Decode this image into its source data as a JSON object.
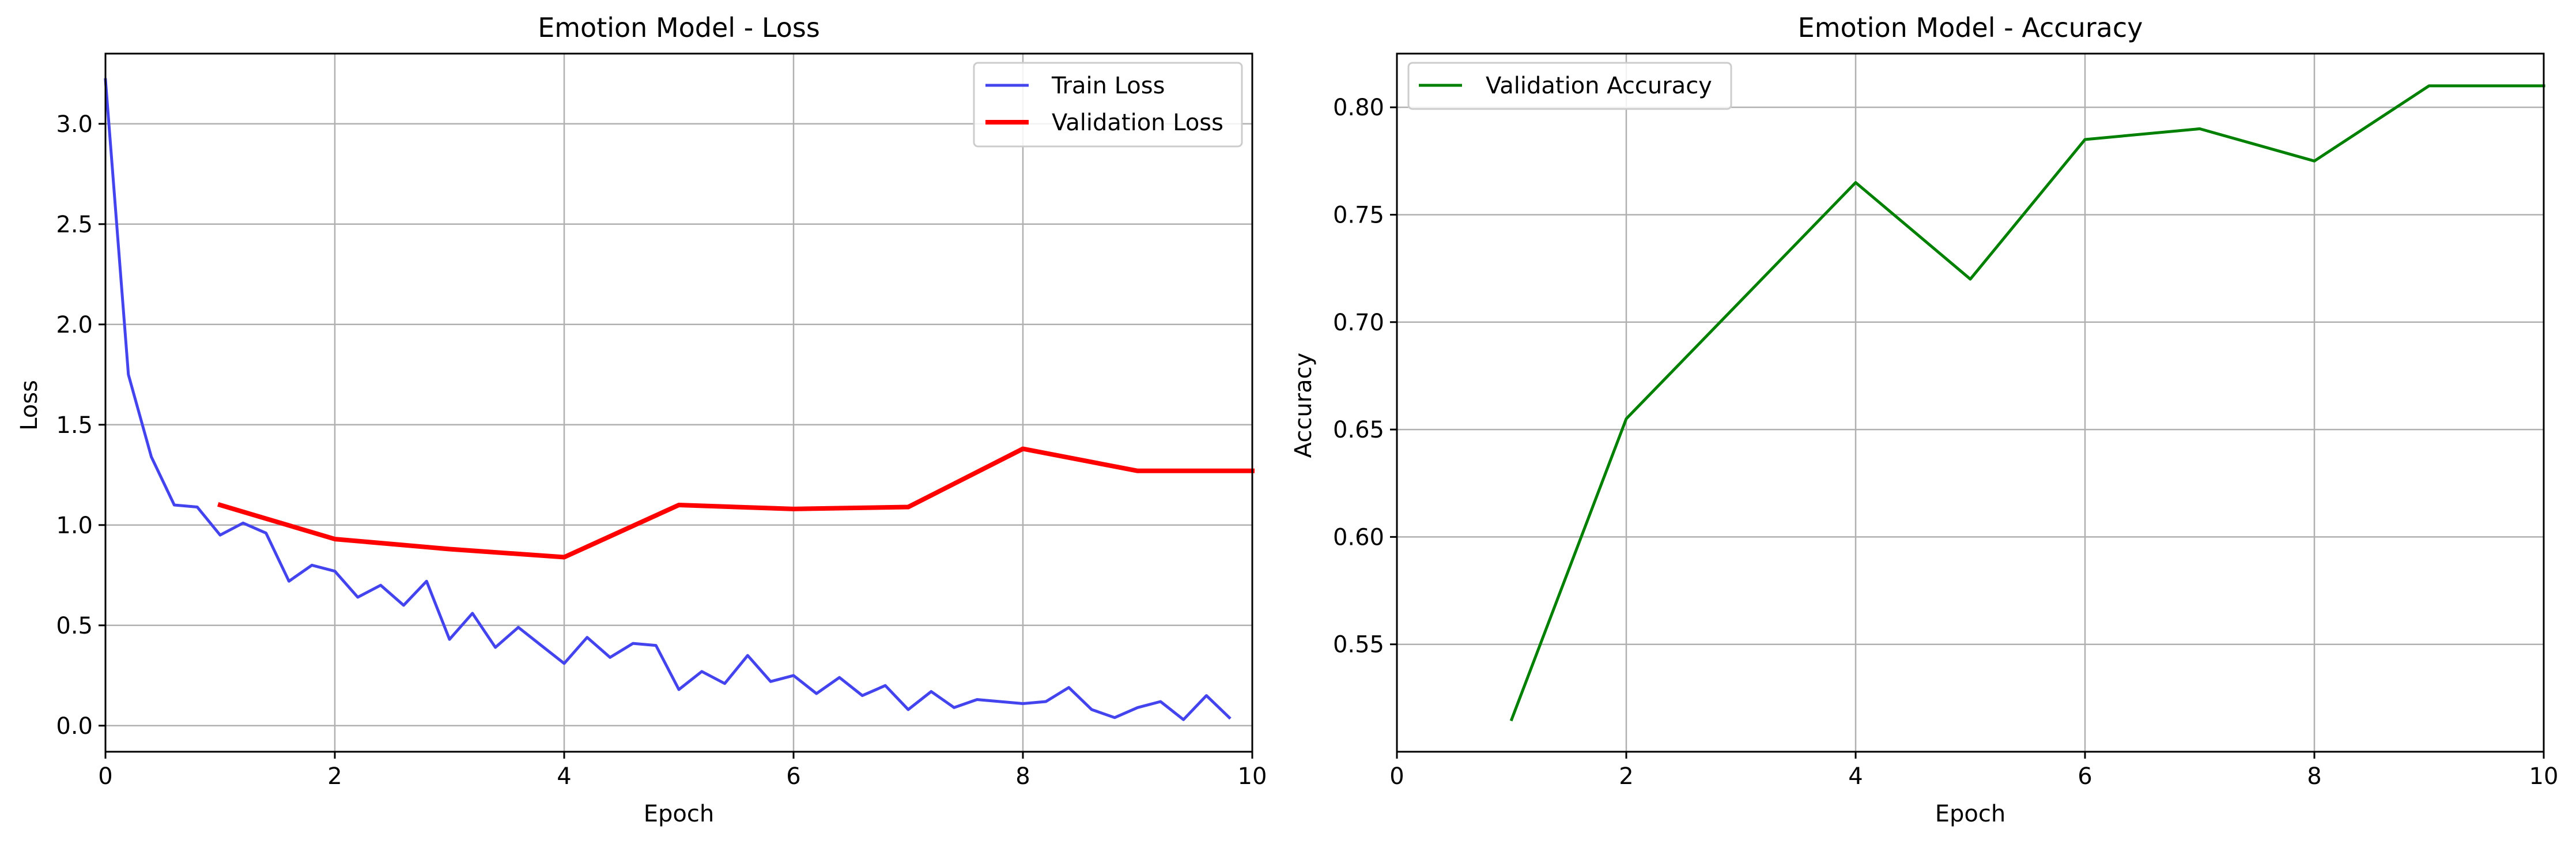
{
  "chart_data": [
    {
      "type": "line",
      "title": "Emotion Model - Loss",
      "xlabel": "Epoch",
      "ylabel": "Loss",
      "xlim": [
        0,
        10
      ],
      "ylim": [
        -0.13,
        3.35
      ],
      "xticks": [
        0,
        2,
        4,
        6,
        8,
        10
      ],
      "xtick_labels": [
        "0",
        "2",
        "4",
        "6",
        "8",
        "10"
      ],
      "yticks": [
        0.0,
        0.5,
        1.0,
        1.5,
        2.0,
        2.5,
        3.0
      ],
      "ytick_labels": [
        "0.0",
        "0.5",
        "1.0",
        "1.5",
        "2.0",
        "2.5",
        "3.0"
      ],
      "grid": true,
      "legend_position": "upper right",
      "series": [
        {
          "name": "Train Loss",
          "color": "#4444ee",
          "style": "thin",
          "x": [
            0,
            0.2,
            0.4,
            0.6,
            0.8,
            1.0,
            1.2,
            1.4,
            1.6,
            1.8,
            2.0,
            2.2,
            2.4,
            2.6,
            2.8,
            3.0,
            3.2,
            3.4,
            3.6,
            3.8,
            4.0,
            4.2,
            4.4,
            4.6,
            4.8,
            5.0,
            5.2,
            5.4,
            5.6,
            5.8,
            6.0,
            6.2,
            6.4,
            6.6,
            6.8,
            7.0,
            7.2,
            7.4,
            7.6,
            7.8,
            8.0,
            8.2,
            8.4,
            8.6,
            8.8,
            9.0,
            9.2,
            9.4,
            9.6,
            9.8
          ],
          "y": [
            3.22,
            1.75,
            1.34,
            1.1,
            1.09,
            0.95,
            1.01,
            0.96,
            0.72,
            0.8,
            0.77,
            0.64,
            0.7,
            0.6,
            0.72,
            0.43,
            0.56,
            0.39,
            0.49,
            0.4,
            0.31,
            0.44,
            0.34,
            0.41,
            0.4,
            0.18,
            0.27,
            0.21,
            0.35,
            0.22,
            0.25,
            0.16,
            0.24,
            0.15,
            0.2,
            0.08,
            0.17,
            0.09,
            0.13,
            0.12,
            0.11,
            0.12,
            0.19,
            0.08,
            0.04,
            0.09,
            0.12,
            0.03,
            0.15,
            0.04
          ]
        },
        {
          "name": "Validation Loss",
          "color": "#ff0000",
          "style": "thick",
          "x": [
            1,
            2,
            3,
            4,
            5,
            6,
            7,
            8,
            9,
            10
          ],
          "y": [
            1.1,
            0.93,
            0.88,
            0.84,
            1.1,
            1.08,
            1.09,
            1.38,
            1.27,
            1.27
          ]
        }
      ]
    },
    {
      "type": "line",
      "title": "Emotion Model - Accuracy",
      "xlabel": "Epoch",
      "ylabel": "Accuracy",
      "xlim": [
        0,
        10
      ],
      "ylim": [
        0.5,
        0.825
      ],
      "xticks": [
        0,
        2,
        4,
        6,
        8,
        10
      ],
      "xtick_labels": [
        "0",
        "2",
        "4",
        "6",
        "8",
        "10"
      ],
      "yticks": [
        0.55,
        0.6,
        0.65,
        0.7,
        0.75,
        0.8
      ],
      "ytick_labels": [
        "0.55",
        "0.60",
        "0.65",
        "0.70",
        "0.75",
        "0.80"
      ],
      "grid": true,
      "legend_position": "upper left",
      "series": [
        {
          "name": "Validation Accuracy",
          "color": "#008000",
          "style": "medium",
          "x": [
            1,
            2,
            3,
            4,
            5,
            6,
            7,
            8,
            9,
            10
          ],
          "y": [
            0.515,
            0.655,
            0.71,
            0.765,
            0.72,
            0.785,
            0.79,
            0.775,
            0.81,
            0.81
          ]
        }
      ]
    }
  ]
}
